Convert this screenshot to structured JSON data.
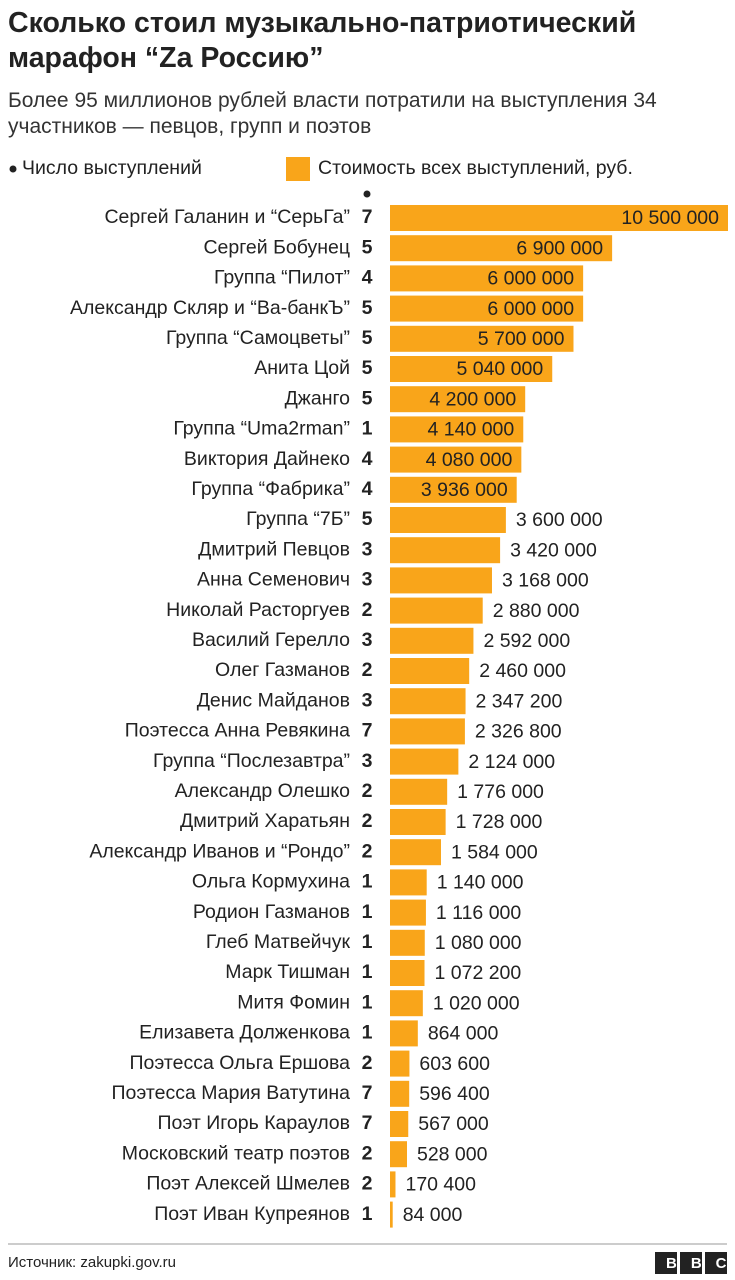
{
  "chart_data": {
    "type": "bar",
    "title": "Сколько стоил музыкально-патриотический марафон “Za Россию”",
    "subtitle": "Более 95 миллионов рублей власти потратили на выступления 34 участников — певцов, групп и поэтов",
    "categories": [
      "Сергей Галанин и “СерьГа”",
      "Сергей Бобунец",
      "Группа “Пилот”",
      "Александр Скляр и “Ва-банкЪ”",
      "Группа “Самоцветы”",
      "Анита Цой",
      "Джанго",
      "Группа “Uma2rman”",
      "Виктория Дайнеко",
      "Группа “Фабрика”",
      "Группа “7Б”",
      "Дмитрий Певцов",
      "Анна Семенович",
      "Николай Расторгуев",
      "Василий Герелло",
      "Олег Газманов",
      "Денис Майданов",
      "Поэтесса Анна Ревякина",
      "Группа “Послезавтра”",
      "Александр Олешко",
      "Дмитрий Харатьян",
      "Александр Иванов и “Рондо”",
      "Ольга Кормухина",
      "Родион Газманов",
      "Глеб Матвейчук",
      "Марк Тишман",
      "Митя Фомин",
      "Елизавета Долженкова",
      "Поэтесса Ольга Ершова",
      "Поэтесса Мария Ватутина",
      "Поэт Игорь Караулов",
      "Московский театр поэтов",
      "Поэт Алексей Шмелев",
      "Поэт Иван Купреянов"
    ],
    "series": [
      {
        "name": "Число выступлений",
        "color": "#222222",
        "values": [
          7,
          5,
          4,
          5,
          5,
          5,
          5,
          1,
          4,
          4,
          5,
          3,
          3,
          2,
          3,
          2,
          3,
          7,
          3,
          2,
          2,
          2,
          1,
          1,
          1,
          1,
          1,
          1,
          2,
          7,
          7,
          2,
          2,
          1
        ]
      },
      {
        "name": "Стоимость всех выступлений, руб.",
        "color": "#f9a51a",
        "values": [
          10500000,
          6900000,
          6000000,
          6000000,
          5700000,
          5040000,
          4200000,
          4140000,
          4080000,
          3936000,
          3600000,
          3420000,
          3168000,
          2880000,
          2592000,
          2460000,
          2347200,
          2326800,
          2124000,
          1776000,
          1728000,
          1584000,
          1140000,
          1116000,
          1080000,
          1072200,
          1020000,
          864000,
          603600,
          596400,
          567000,
          528000,
          170400,
          84000
        ],
        "value_labels": [
          "10 500 000",
          "6 900 000",
          "6 000 000",
          "6 000 000",
          "5 700 000",
          "5 040 000",
          "4 200 000",
          "4 140 000",
          "4 080 000",
          "3 936 000",
          "3 600 000",
          "3 420 000",
          "3 168 000",
          "2 880 000",
          "2 592 000",
          "2 460 000",
          "2 347 200",
          "2 326 800",
          "2 124 000",
          "1 776 000",
          "1 728 000",
          "1 584 000",
          "1 140 000",
          "1 116 000",
          "1 080 000",
          "1 072 200",
          "1 020 000",
          "864 000",
          "603 600",
          "596 400",
          "567 000",
          "528 000",
          "170 400",
          "84 000"
        ]
      }
    ],
    "source": "Источник: zakupki.gov.ru",
    "logo": "BBC"
  }
}
